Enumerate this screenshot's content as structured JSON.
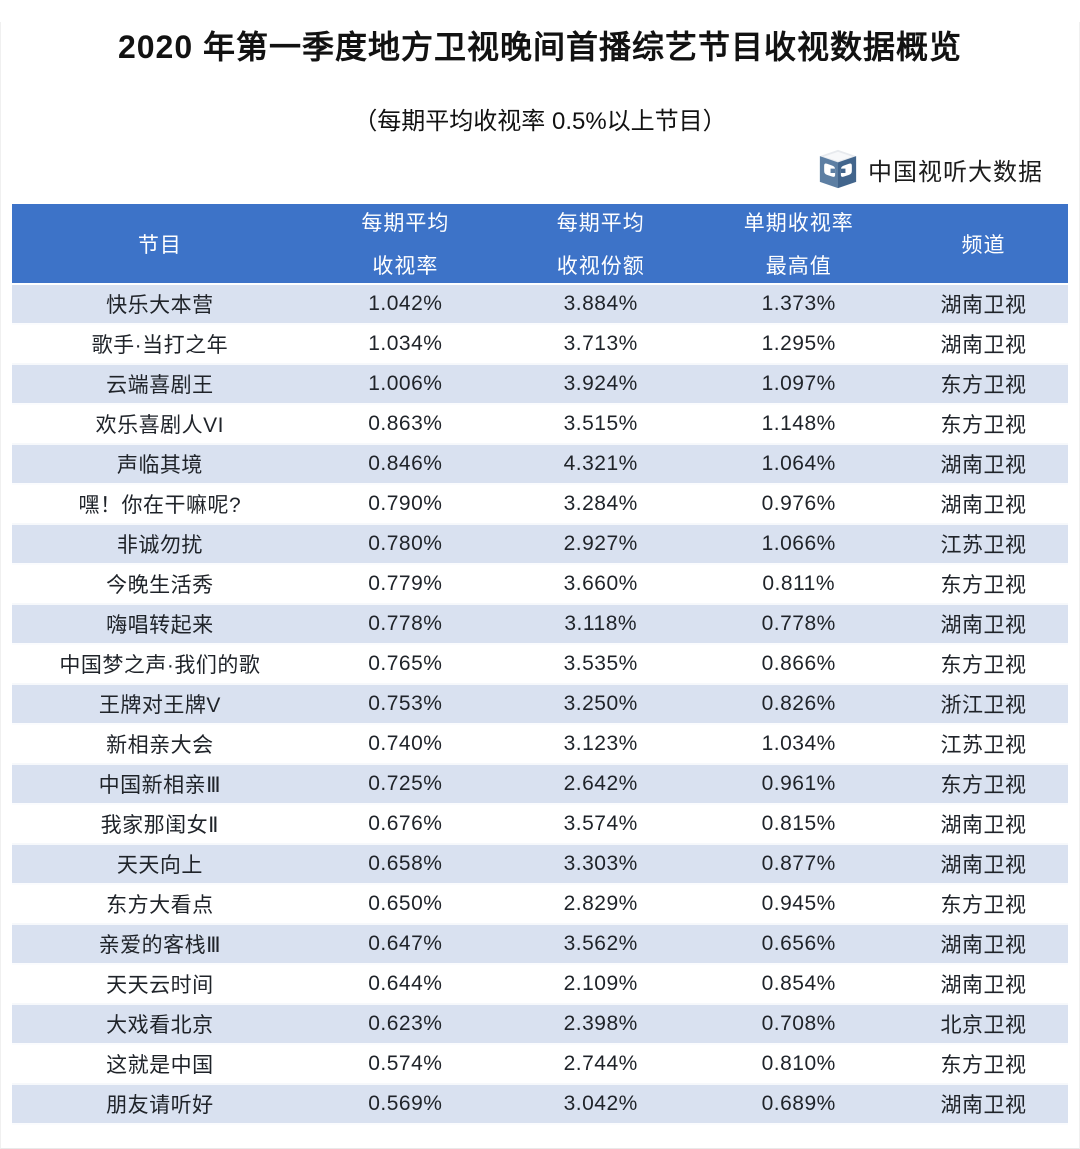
{
  "page": {
    "title": "2020 年第一季度地方卫视晚间首播综艺节目收视数据概览",
    "subtitle": "（每期平均收视率 0.5%以上节目）",
    "brand": "中国视听大数据"
  },
  "colors": {
    "header_bg": "#3d73c8",
    "header_text": "#ffffff",
    "row_alt_bg": "#d9e1f0",
    "row_bg": "#ffffff",
    "body_text": "#1f2329"
  },
  "table": {
    "headers": [
      {
        "line1": "节目",
        "line2": ""
      },
      {
        "line1": "每期平均",
        "line2": "收视率"
      },
      {
        "line1": "每期平均",
        "line2": "收视份额"
      },
      {
        "line1": "单期收视率",
        "line2": "最高值"
      },
      {
        "line1": "频道",
        "line2": ""
      }
    ]
  },
  "chart_data": {
    "type": "table",
    "title": "2020 年第一季度地方卫视晚间首播综艺节目收视数据概览",
    "subtitle": "（每期平均收视率 0.5%以上节目）",
    "columns": [
      "节目",
      "每期平均收视率",
      "每期平均收视份额",
      "单期收视率最高值",
      "频道"
    ],
    "rows": [
      [
        "快乐大本营",
        "1.042%",
        "3.884%",
        "1.373%",
        "湖南卫视"
      ],
      [
        "歌手·当打之年",
        "1.034%",
        "3.713%",
        "1.295%",
        "湖南卫视"
      ],
      [
        "云端喜剧王",
        "1.006%",
        "3.924%",
        "1.097%",
        "东方卫视"
      ],
      [
        "欢乐喜剧人VI",
        "0.863%",
        "3.515%",
        "1.148%",
        "东方卫视"
      ],
      [
        "声临其境",
        "0.846%",
        "4.321%",
        "1.064%",
        "湖南卫视"
      ],
      [
        "嘿！你在干嘛呢?",
        "0.790%",
        "3.284%",
        "0.976%",
        "湖南卫视"
      ],
      [
        "非诚勿扰",
        "0.780%",
        "2.927%",
        "1.066%",
        "江苏卫视"
      ],
      [
        "今晚生活秀",
        "0.779%",
        "3.660%",
        "0.811%",
        "东方卫视"
      ],
      [
        "嗨唱转起来",
        "0.778%",
        "3.118%",
        "0.778%",
        "湖南卫视"
      ],
      [
        "中国梦之声·我们的歌",
        "0.765%",
        "3.535%",
        "0.866%",
        "东方卫视"
      ],
      [
        "王牌对王牌V",
        "0.753%",
        "3.250%",
        "0.826%",
        "浙江卫视"
      ],
      [
        "新相亲大会",
        "0.740%",
        "3.123%",
        "1.034%",
        "江苏卫视"
      ],
      [
        "中国新相亲Ⅲ",
        "0.725%",
        "2.642%",
        "0.961%",
        "东方卫视"
      ],
      [
        "我家那闺女Ⅱ",
        "0.676%",
        "3.574%",
        "0.815%",
        "湖南卫视"
      ],
      [
        "天天向上",
        "0.658%",
        "3.303%",
        "0.877%",
        "湖南卫视"
      ],
      [
        "东方大看点",
        "0.650%",
        "2.829%",
        "0.945%",
        "东方卫视"
      ],
      [
        "亲爱的客栈Ⅲ",
        "0.647%",
        "3.562%",
        "0.656%",
        "湖南卫视"
      ],
      [
        "天天云时间",
        "0.644%",
        "2.109%",
        "0.854%",
        "湖南卫视"
      ],
      [
        "大戏看北京",
        "0.623%",
        "2.398%",
        "0.708%",
        "北京卫视"
      ],
      [
        "这就是中国",
        "0.574%",
        "2.744%",
        "0.810%",
        "东方卫视"
      ],
      [
        "朋友请听好",
        "0.569%",
        "3.042%",
        "0.689%",
        "湖南卫视"
      ]
    ]
  }
}
